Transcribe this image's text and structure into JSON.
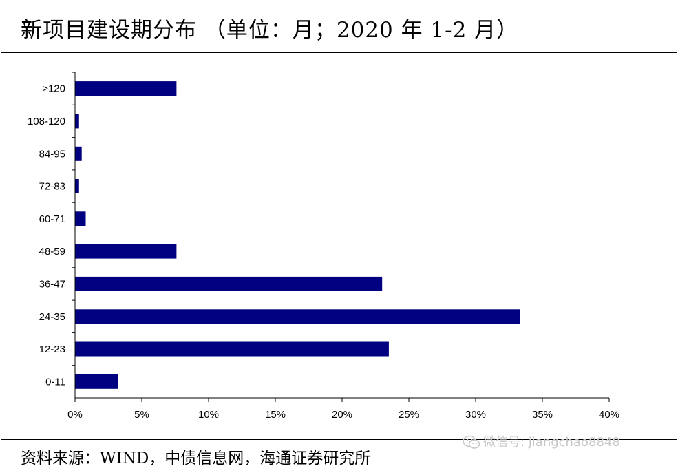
{
  "header": {
    "title": "新项目建设期分布 （单位：月；2020 年 1-2 月）"
  },
  "footer": {
    "source": "资料来源：WIND，中债信息网，海通证券研究所",
    "watermark": "微信号: jiangchao8848"
  },
  "chart_data": {
    "type": "bar",
    "orientation": "horizontal",
    "title": "新项目建设期分布 （单位：月；2020 年 1-2 月）",
    "xlabel": "",
    "ylabel": "",
    "categories": [
      ">120",
      "108-120",
      "84-95",
      "72-83",
      "60-71",
      "48-59",
      "36-47",
      "24-35",
      "12-23",
      "0-11"
    ],
    "values": [
      7.6,
      0.3,
      0.5,
      0.3,
      0.8,
      7.6,
      23.0,
      33.3,
      23.5,
      3.2
    ],
    "xlim": [
      0,
      40
    ],
    "x_ticks": [
      0,
      5,
      10,
      15,
      20,
      25,
      30,
      35,
      40
    ],
    "x_tick_labels": [
      "0%",
      "5%",
      "10%",
      "15%",
      "20%",
      "25%",
      "30%",
      "35%",
      "40%"
    ],
    "bar_color": "#000080",
    "grid": false,
    "legend": "none"
  }
}
